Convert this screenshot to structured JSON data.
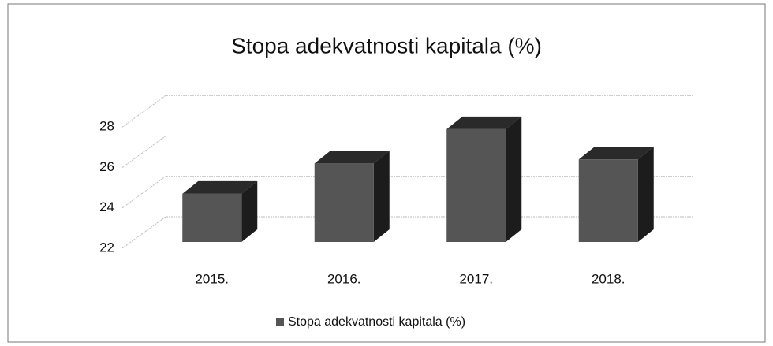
{
  "chart_data": {
    "type": "bar",
    "title": "Stopa adekvatnosti kapitala (%)",
    "categories": [
      "2015.",
      "2016.",
      "2017.",
      "2018."
    ],
    "series": [
      {
        "name": "Stopa adekvatnosti kapitala (%)",
        "color": "#555555",
        "values": [
          24.7,
          26.2,
          27.9,
          26.4
        ]
      }
    ],
    "ylim": [
      22,
      30
    ],
    "yticks": [
      22,
      24,
      26,
      28
    ],
    "grid": true,
    "legend": "bottom"
  }
}
